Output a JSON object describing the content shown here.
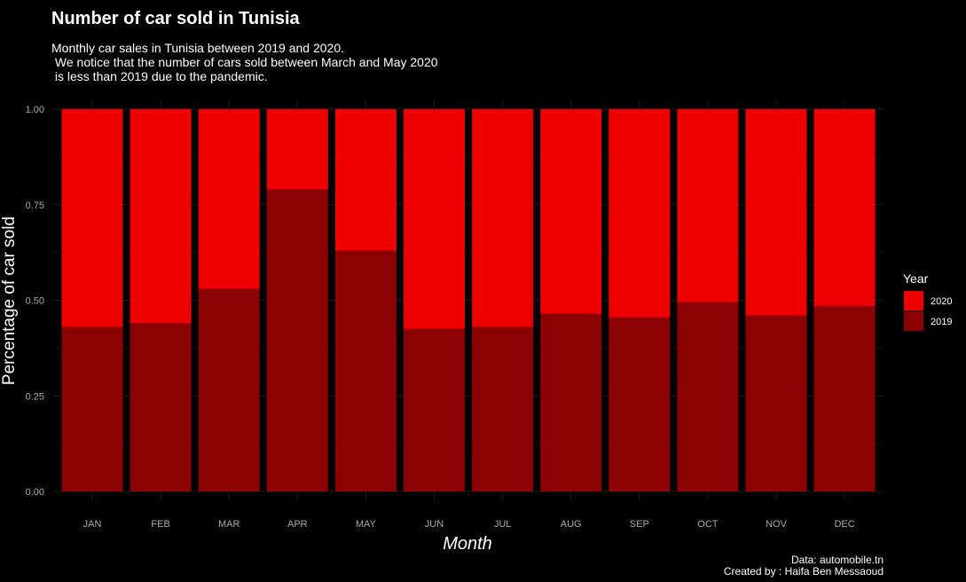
{
  "header": {
    "title": "Number of car sold in Tunisia",
    "subtitle": "Monthly car sales in Tunisia between 2019 and 2020.\n We notice that the number of cars sold between March and May 2020\n is less than 2019 due to the pandemic."
  },
  "footer": {
    "caption": "Data: automobile.tn\nCreated by : Haifa Ben Messaoud"
  },
  "colors": {
    "background": "#000000",
    "grid": "#1c1c1c",
    "tick_text": "#aaaaaa",
    "series_2019": "#8b0000",
    "series_2020": "#ee0000"
  },
  "chart_data": {
    "type": "bar",
    "stacked": "fill",
    "categories": [
      "JAN",
      "FEB",
      "MAR",
      "APR",
      "MAY",
      "JUN",
      "JUL",
      "AUG",
      "SEP",
      "OCT",
      "NOV",
      "DEC"
    ],
    "series": [
      {
        "name": "2019",
        "values": [
          0.43,
          0.44,
          0.53,
          0.79,
          0.63,
          0.425,
          0.43,
          0.465,
          0.455,
          0.495,
          0.46,
          0.485
        ]
      },
      {
        "name": "2020",
        "values": [
          0.57,
          0.56,
          0.47,
          0.21,
          0.37,
          0.575,
          0.57,
          0.535,
          0.545,
          0.505,
          0.54,
          0.515
        ]
      }
    ],
    "xlabel": "Month",
    "ylabel": "Percentage of car sold",
    "ylim": [
      0,
      1
    ],
    "yticks": [
      0,
      0.25,
      0.5,
      0.75,
      1
    ],
    "ytick_labels": [
      "0.00",
      "0.25",
      "0.50",
      "0.75",
      "1.00"
    ],
    "grid": true,
    "legend": {
      "title": "Year",
      "position": "right",
      "entries": [
        {
          "label": "2020",
          "color": "#ee0000"
        },
        {
          "label": "2019",
          "color": "#8b0000"
        }
      ]
    }
  }
}
